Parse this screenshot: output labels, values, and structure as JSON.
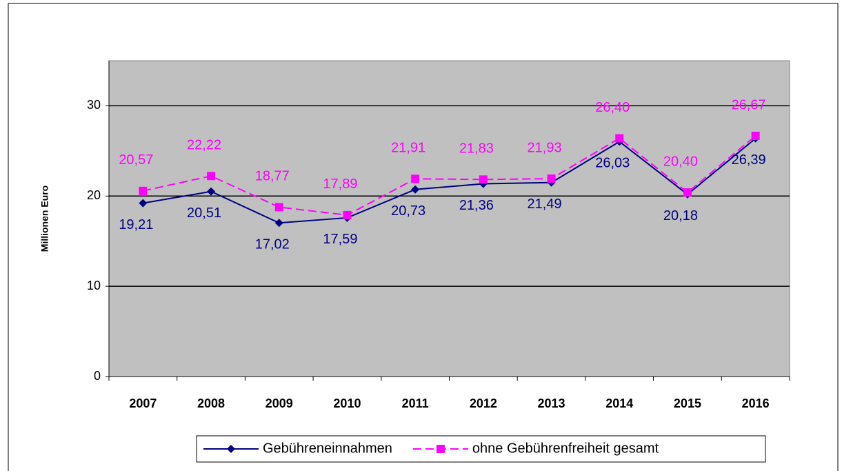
{
  "chart_data": {
    "type": "line",
    "y_label": "Millionen  Euro",
    "categories": [
      "2007",
      "2008",
      "2009",
      "2010",
      "2011",
      "2012",
      "2013",
      "2014",
      "2015",
      "2016"
    ],
    "series": [
      {
        "name": "Gebühreneinnahmen",
        "color": "#000080",
        "marker": "diamond",
        "dash": false,
        "values": [
          19.21,
          20.51,
          17.02,
          17.59,
          20.73,
          21.36,
          21.49,
          26.03,
          20.18,
          26.39
        ],
        "value_labels": [
          "19,21",
          "20,51",
          "17,02",
          "17,59",
          "20,73",
          "21,36",
          "21,49",
          "26,03",
          "20,18",
          "26,39"
        ]
      },
      {
        "name": "ohne Gebührenfreiheit gesamt",
        "color": "#ff00ff",
        "marker": "square",
        "dash": true,
        "values": [
          20.57,
          22.22,
          18.77,
          17.89,
          21.91,
          21.83,
          21.93,
          26.4,
          20.4,
          26.67
        ],
        "value_labels": [
          "20,57",
          "22,22",
          "18,77",
          "17,89",
          "21,91",
          "21,83",
          "21,93",
          "26,40",
          "20,40",
          "26,67"
        ]
      }
    ],
    "ylim": [
      0,
      35
    ],
    "yticks": [
      0,
      10,
      20,
      30
    ],
    "grid": true,
    "plot_background": "#c0c0c0",
    "legend": "bottom"
  }
}
